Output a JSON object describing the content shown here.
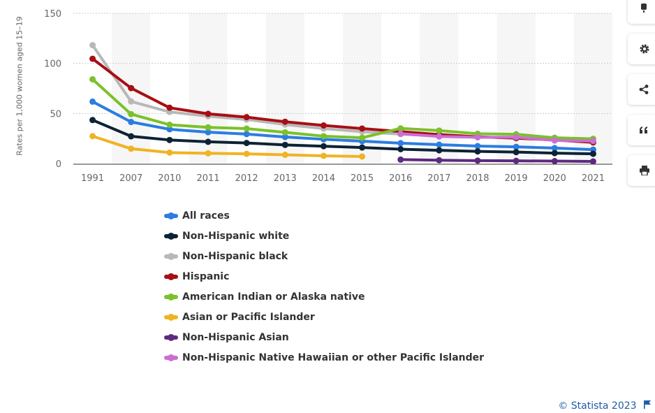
{
  "chart_data": {
    "type": "line",
    "title": "",
    "xlabel": "",
    "ylabel": "Rates per 1,000 women aged 15–19",
    "ylim": [
      0,
      150
    ],
    "yticks": [
      0,
      50,
      100,
      150
    ],
    "grid": true,
    "categories": [
      "1991",
      "2007",
      "2010",
      "2011",
      "2012",
      "2013",
      "2014",
      "2015",
      "2016",
      "2017",
      "2018",
      "2019",
      "2020",
      "2021"
    ],
    "series": [
      {
        "name": "All races",
        "color": "#2b7de0",
        "values": [
          61.8,
          41.5,
          34.2,
          31.3,
          29.4,
          26.5,
          24.2,
          22.3,
          20.3,
          18.8,
          17.4,
          16.7,
          15.4,
          13.9
        ]
      },
      {
        "name": "Non-Hispanic white",
        "color": "#0d2234",
        "values": [
          43.4,
          27.2,
          23.5,
          21.7,
          20.5,
          18.6,
          17.3,
          16.0,
          14.3,
          13.2,
          12.1,
          11.4,
          10.4,
          9.7
        ]
      },
      {
        "name": "Non-Hispanic black",
        "color": "#b8b8b8",
        "values": [
          118.2,
          62.0,
          51.5,
          47.3,
          43.9,
          39.0,
          34.9,
          31.8,
          29.3,
          27.5,
          26.3,
          25.8,
          24.4,
          21.4
        ]
      },
      {
        "name": "Hispanic",
        "color": "#a60f14",
        "values": [
          104.6,
          75.3,
          55.7,
          49.6,
          46.3,
          41.7,
          38.0,
          34.9,
          31.9,
          28.9,
          26.7,
          25.3,
          23.5,
          21.1
        ]
      },
      {
        "name": "American Indian or Alaska native",
        "color": "#7bc12a",
        "values": [
          84.1,
          49.3,
          38.7,
          36.1,
          34.9,
          31.1,
          27.3,
          25.7,
          35.1,
          32.9,
          29.7,
          29.2,
          25.7,
          24.7
        ]
      },
      {
        "name": "Asian or Pacific Islander",
        "color": "#f0b323",
        "values": [
          27.3,
          14.8,
          10.9,
          10.2,
          9.7,
          8.7,
          7.7,
          7.0,
          null,
          null,
          null,
          null,
          null,
          null
        ]
      },
      {
        "name": "Non-Hispanic Asian",
        "color": "#5e2a7e",
        "values": [
          null,
          null,
          null,
          null,
          null,
          null,
          null,
          null,
          3.9,
          3.3,
          2.9,
          2.7,
          2.4,
          2.1
        ]
      },
      {
        "name": "Non-Hispanic Native Hawaiian or other Pacific Islander",
        "color": "#c96fd2",
        "values": [
          null,
          null,
          null,
          null,
          null,
          null,
          null,
          null,
          29.7,
          27.0,
          26.2,
          26.3,
          23.0,
          22.5
        ]
      }
    ]
  },
  "footer": {
    "credit": "© Statista 2023"
  },
  "toolbar": {
    "icons": [
      "notification-icon",
      "gear-icon",
      "share-icon",
      "quote-icon",
      "print-icon"
    ]
  }
}
